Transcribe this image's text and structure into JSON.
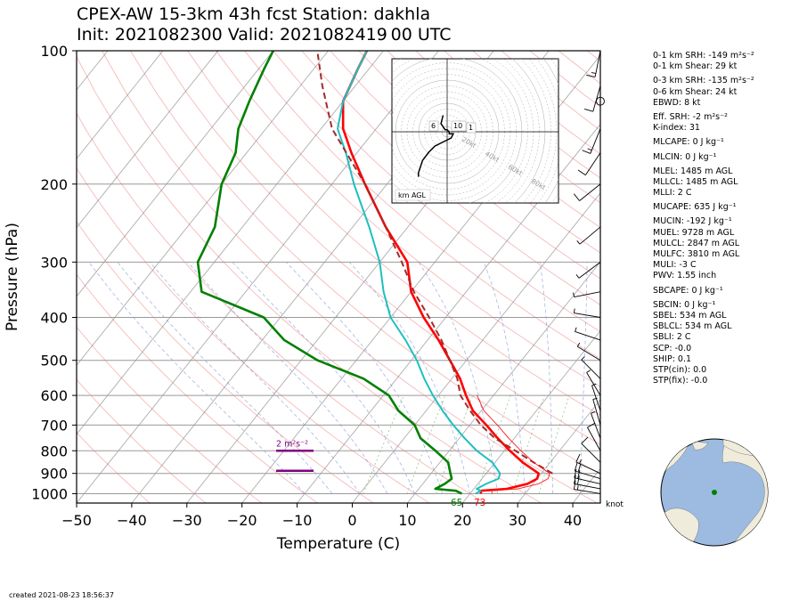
{
  "header": {
    "title_line1": "CPEX-AW 15-3km  43h fcst  Station: dakhla",
    "title_line2": "Init: 2021082300  Valid: 2021082419 00 UTC"
  },
  "footer": {
    "created": "created 2021-08-23 18:56:37"
  },
  "stats": [
    {
      "label": "0-1 km SRH: -149 m²s⁻²"
    },
    {
      "label": "0-1 km Shear: 29 kt"
    },
    {
      "label": "0-3 km SRH: -135 m²s⁻²"
    },
    {
      "label": "0-6 km Shear: 24 kt"
    },
    {
      "label": "EBWD: 8 kt"
    },
    {
      "label": "Eff. SRH: -2 m²s⁻²"
    },
    {
      "label": "K-index: 31"
    },
    {
      "label": "MLCAPE: 0 J kg⁻¹"
    },
    {
      "label": "MLCIN: 0 J kg⁻¹"
    },
    {
      "label": "MLEL: 1485 m AGL"
    },
    {
      "label": "MLLCL: 1485 m AGL"
    },
    {
      "label": "MLLI: 2 C"
    },
    {
      "label": "MUCAPE: 635 J kg⁻¹"
    },
    {
      "label": "MUCIN: -192 J kg⁻¹"
    },
    {
      "label": "MUEL: 9728 m AGL"
    },
    {
      "label": "MULCL: 2847 m AGL"
    },
    {
      "label": "MULFC: 3810 m AGL"
    },
    {
      "label": "MULI: -3 C"
    },
    {
      "label": "PWV: 1.55 inch"
    },
    {
      "label": "SBCAPE: 0 J kg⁻¹"
    },
    {
      "label": "SBCIN: 0 J kg⁻¹"
    },
    {
      "label": "SBEL: 534 m AGL"
    },
    {
      "label": "SBLCL: 534 m AGL"
    },
    {
      "label": "SBLI: 2 C"
    },
    {
      "label": "SCP: -0.0"
    },
    {
      "label": "SHIP: 0.1"
    },
    {
      "label": "STP(cin): 0.0"
    },
    {
      "label": "STP(fix): -0.0"
    }
  ],
  "colors": {
    "temperature": "#ff0000",
    "dewpoint": "#008000",
    "virtual_temp": "#1fbfc0",
    "parcel": "#a52a2a",
    "srh_bar": "#800080",
    "ocean": "#9dbbe0",
    "land": "#f0ecdc"
  },
  "chart_data": {
    "type": "skew-t",
    "xlabel": "Temperature (C)",
    "ylabel": "Pressure (hPa)",
    "xlim": [
      -50,
      45
    ],
    "ylim": [
      1050,
      100
    ],
    "x_ticks": [
      "−50",
      "−40",
      "−30",
      "−20",
      "−10",
      "0",
      "10",
      "20",
      "30",
      "40"
    ],
    "x_tick_values": [
      -50,
      -40,
      -30,
      -20,
      -10,
      0,
      10,
      20,
      30,
      40
    ],
    "y_ticks": [
      "100",
      "200",
      "300",
      "400",
      "500",
      "600",
      "700",
      "800",
      "900",
      "1000"
    ],
    "y_tick_values": [
      100,
      200,
      300,
      400,
      500,
      600,
      700,
      800,
      900,
      1000
    ],
    "surface_labels": {
      "dewpoint": "65",
      "temperature": "73"
    },
    "wind_unit_label": "knot",
    "srh_label": "2 m²s⁻²",
    "hodograph_label": "km AGL",
    "hodograph_ring_labels": [
      "20kt",
      "40kt",
      "60kt",
      "80kt"
    ],
    "hodograph_height_labels": [
      "6",
      "10",
      "1"
    ],
    "series": [
      {
        "name": "temperature",
        "points": [
          [
            1000,
            22
          ],
          [
            985,
            21.5
          ],
          [
            975,
            26
          ],
          [
            950,
            29
          ],
          [
            925,
            30
          ],
          [
            900,
            29.5
          ],
          [
            850,
            25
          ],
          [
            800,
            21
          ],
          [
            750,
            17
          ],
          [
            700,
            13
          ],
          [
            650,
            8.5
          ],
          [
            600,
            5
          ],
          [
            550,
            1.5
          ],
          [
            500,
            -3
          ],
          [
            450,
            -8
          ],
          [
            400,
            -14
          ],
          [
            350,
            -20
          ],
          [
            300,
            -25
          ],
          [
            250,
            -34
          ],
          [
            200,
            -44
          ],
          [
            170,
            -51
          ],
          [
            150,
            -56
          ],
          [
            130,
            -60
          ],
          [
            110,
            -62
          ],
          [
            100,
            -63
          ]
        ]
      },
      {
        "name": "virtual_temp",
        "points": [
          [
            1000,
            21
          ],
          [
            985,
            21.5
          ],
          [
            975,
            20.5
          ],
          [
            950,
            21.5
          ],
          [
            925,
            23
          ],
          [
            900,
            22.5
          ],
          [
            850,
            19.5
          ],
          [
            800,
            15
          ],
          [
            750,
            11
          ],
          [
            700,
            7
          ],
          [
            650,
            3
          ],
          [
            600,
            -1
          ],
          [
            550,
            -5
          ],
          [
            500,
            -9
          ],
          [
            450,
            -14
          ],
          [
            400,
            -20
          ],
          [
            350,
            -25
          ],
          [
            300,
            -30
          ],
          [
            250,
            -37
          ],
          [
            200,
            -46
          ],
          [
            170,
            -52
          ],
          [
            150,
            -57
          ],
          [
            130,
            -60
          ],
          [
            110,
            -62
          ],
          [
            100,
            -63
          ]
        ]
      },
      {
        "name": "dewpoint",
        "points": [
          [
            1000,
            18.5
          ],
          [
            985,
            17
          ],
          [
            975,
            13
          ],
          [
            950,
            14
          ],
          [
            925,
            14.5
          ],
          [
            900,
            13.5
          ],
          [
            850,
            11.5
          ],
          [
            800,
            7.5
          ],
          [
            750,
            3
          ],
          [
            700,
            0
          ],
          [
            650,
            -5
          ],
          [
            600,
            -9
          ],
          [
            550,
            -16
          ],
          [
            500,
            -27
          ],
          [
            450,
            -36
          ],
          [
            400,
            -43
          ],
          [
            350,
            -58
          ],
          [
            300,
            -63
          ],
          [
            250,
            -65
          ],
          [
            200,
            -70
          ],
          [
            170,
            -72
          ],
          [
            150,
            -75
          ],
          [
            130,
            -77
          ],
          [
            110,
            -79
          ],
          [
            100,
            -80
          ]
        ]
      },
      {
        "name": "parcel",
        "points": [
          [
            900,
            32
          ],
          [
            850,
            27
          ],
          [
            800,
            22
          ],
          [
            750,
            16.5
          ],
          [
            700,
            12
          ],
          [
            650,
            8
          ],
          [
            600,
            4
          ],
          [
            550,
            1
          ],
          [
            500,
            -3
          ],
          [
            450,
            -7.5
          ],
          [
            400,
            -13
          ],
          [
            350,
            -19.5
          ],
          [
            300,
            -26
          ],
          [
            250,
            -34
          ],
          [
            200,
            -44
          ],
          [
            150,
            -58
          ],
          [
            120,
            -66
          ],
          [
            100,
            -72
          ]
        ]
      }
    ],
    "wind_barbs": [
      {
        "p": 1000,
        "u": -18,
        "v": 3
      },
      {
        "p": 975,
        "u": -21,
        "v": 4
      },
      {
        "p": 950,
        "u": -22,
        "v": 5
      },
      {
        "p": 925,
        "u": -20,
        "v": 6
      },
      {
        "p": 900,
        "u": -15,
        "v": 7
      },
      {
        "p": 850,
        "u": -9,
        "v": 9
      },
      {
        "p": 800,
        "u": -5,
        "v": 9
      },
      {
        "p": 750,
        "u": -3,
        "v": 8
      },
      {
        "p": 700,
        "u": -2,
        "v": 7
      },
      {
        "p": 650,
        "u": -2,
        "v": 6
      },
      {
        "p": 600,
        "u": -3,
        "v": 5
      },
      {
        "p": 550,
        "u": -4,
        "v": 4
      },
      {
        "p": 500,
        "u": -5,
        "v": 3
      },
      {
        "p": 450,
        "u": -6,
        "v": 2
      },
      {
        "p": 400,
        "u": -6,
        "v": 1
      },
      {
        "p": 350,
        "u": -5,
        "v": -1
      },
      {
        "p": 300,
        "u": -4,
        "v": -3
      },
      {
        "p": 250,
        "u": -6,
        "v": -5
      },
      {
        "p": 200,
        "u": -10,
        "v": -8
      },
      {
        "p": 170,
        "u": -8,
        "v": -12
      },
      {
        "p": 150,
        "u": -6,
        "v": -15
      },
      {
        "p": 120,
        "u": -4,
        "v": -14
      },
      {
        "p": 100,
        "u": -3,
        "v": -15
      }
    ],
    "hodograph_trace": [
      [
        -2,
        8
      ],
      [
        -3,
        4
      ],
      [
        -1,
        1
      ],
      [
        0,
        1
      ],
      [
        1,
        0
      ],
      [
        1,
        -1
      ],
      [
        3,
        -1
      ],
      [
        2,
        -3
      ],
      [
        -2,
        -5
      ],
      [
        -6,
        -7
      ],
      [
        -9,
        -10
      ],
      [
        -12,
        -14
      ],
      [
        -14,
        -20
      ],
      [
        -14,
        -22
      ]
    ],
    "srh_bars": [
      {
        "p": 800
      },
      {
        "p": 888
      }
    ],
    "globe": {
      "lat": 23.7,
      "lon": -15.9
    }
  }
}
